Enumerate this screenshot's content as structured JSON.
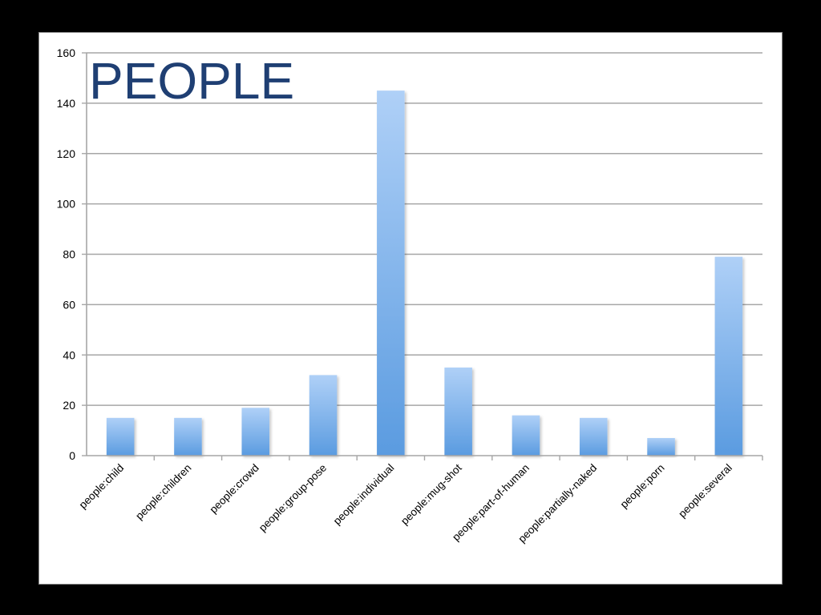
{
  "chart_data": {
    "type": "bar",
    "title": "PEOPLE",
    "xlabel": "",
    "ylabel": "",
    "categories": [
      "people:child",
      "people:children",
      "people:crowd",
      "people:group-pose",
      "people:individual",
      "people:mug-shot",
      "people:part-of-human",
      "people:partially-naked",
      "people:porn",
      "people:several"
    ],
    "values": [
      15,
      15,
      19,
      32,
      145,
      35,
      16,
      15,
      7,
      79
    ],
    "ylim": [
      0,
      160
    ],
    "yticks": [
      0,
      20,
      40,
      60,
      80,
      100,
      120,
      140,
      160
    ],
    "grid": true,
    "legend": "none"
  },
  "colors": {
    "background": "#000000",
    "panel": "#ffffff",
    "bar_top": "#afd0f7",
    "bar_bottom": "#5a9be0",
    "gridline": "#a6a6a6",
    "axis": "#a6a6a6",
    "title": "#1f3f73"
  }
}
